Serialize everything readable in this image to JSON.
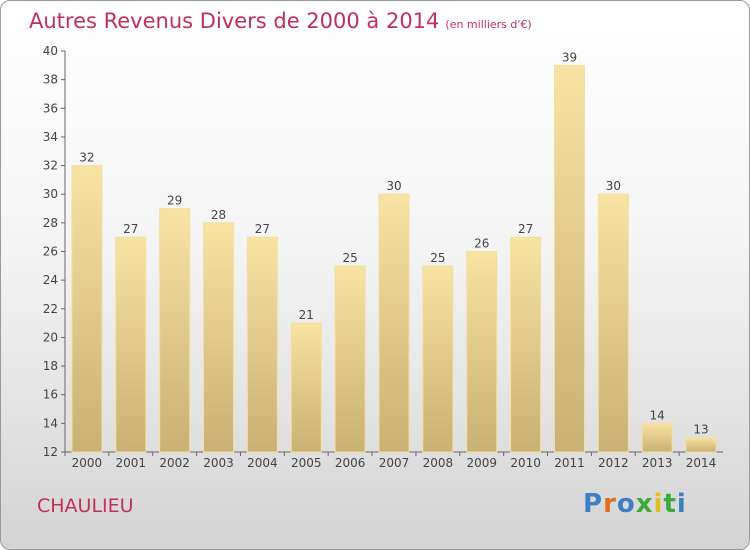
{
  "title": "Autres Revenus Divers de 2000 à 2014",
  "title_unit": "(en milliers d'€)",
  "town": "CHAULIEU",
  "logo": {
    "text": "Proxiti",
    "colors": [
      "#3d7fc4",
      "#e07020",
      "#3d7fc4",
      "#3daa3d",
      "#e0c020",
      "#3daa3d"
    ]
  },
  "colors": {
    "title": "#c0305a",
    "bar_light": "#f7e0a0",
    "bar_dark": "#cdb477"
  },
  "chart_data": {
    "type": "bar",
    "title": "Autres Revenus Divers de 2000 à 2014",
    "subtitle": "(en milliers d'€)",
    "categories": [
      "2000",
      "2001",
      "2002",
      "2003",
      "2004",
      "2005",
      "2006",
      "2007",
      "2008",
      "2009",
      "2010",
      "2011",
      "2012",
      "2013",
      "2014"
    ],
    "values": [
      32,
      27,
      29,
      28,
      27,
      21,
      25,
      30,
      25,
      26,
      27,
      39,
      30,
      14,
      13
    ],
    "xlabel": "",
    "ylabel": "",
    "ylim": [
      12,
      40
    ],
    "yticks": [
      12,
      14,
      16,
      18,
      20,
      22,
      24,
      26,
      28,
      30,
      32,
      34,
      36,
      38,
      40
    ],
    "grid": false,
    "legend": "none"
  }
}
